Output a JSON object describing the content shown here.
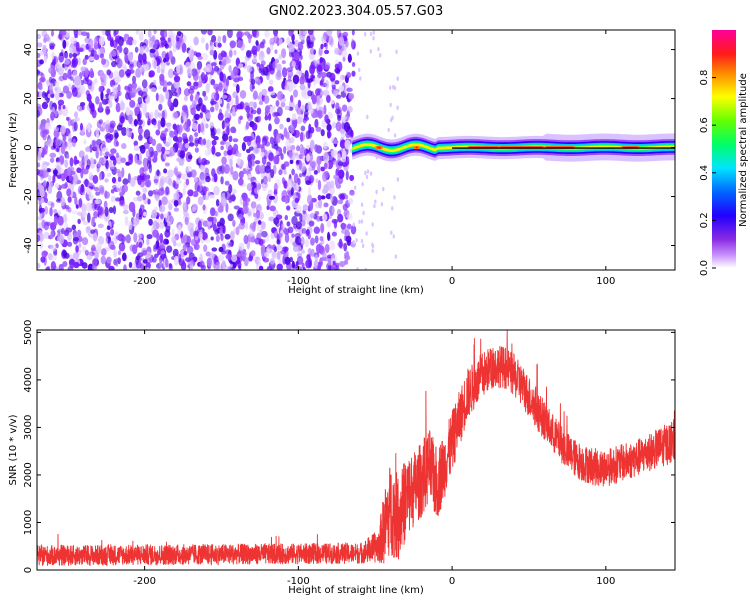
{
  "figure": {
    "title": "GN02.2023.304.05.57.G03"
  },
  "chart_data": [
    {
      "type": "heatmap",
      "name": "spectrogram",
      "xlabel": "Height of straight line (km)",
      "ylabel": "Frequency (Hz)",
      "xlim": [
        -270,
        145
      ],
      "ylim": [
        -50,
        48
      ],
      "xticks": [
        -200,
        -100,
        0,
        100
      ],
      "xtick_labels": [
        "-200",
        "-100",
        "0",
        "100"
      ],
      "yticks": [
        -40,
        -20,
        0,
        20,
        40
      ],
      "ytick_labels": [
        "-40",
        "-20",
        "0",
        "20",
        "40"
      ],
      "colorbar": {
        "label": "Normalized spectral amplitude",
        "range": [
          0,
          1
        ],
        "ticks": [
          0,
          0.2,
          0.4,
          0.6,
          0.8
        ],
        "tick_labels": [
          "0.0",
          "0.2",
          "0.4",
          "0.6",
          "0.8"
        ],
        "colormap": [
          "#ffffff",
          "#9933ff",
          "#3300ff",
          "#0055ff",
          "#00ffff",
          "#00ff44",
          "#66ff00",
          "#ffff00",
          "#ff6600",
          "#ff0033",
          "#ff0099"
        ]
      },
      "noise_region_x": [
        -270,
        -65
      ],
      "signal_region_x": [
        -65,
        145
      ],
      "signal_frequency_hz": 0,
      "noise_color": "#6a0dff",
      "signal_peak_color": "#ff2222"
    },
    {
      "type": "line",
      "name": "snr",
      "xlabel": "Height of straight line (km)",
      "ylabel": "SNR (10 * v/v)",
      "xlim": [
        -270,
        145
      ],
      "ylim": [
        0,
        5050
      ],
      "xticks": [
        -200,
        -100,
        0,
        100
      ],
      "xtick_labels": [
        "-200",
        "-100",
        "0",
        "100"
      ],
      "yticks": [
        0,
        1000,
        2000,
        3000,
        4000,
        5000
      ],
      "ytick_labels": [
        "0",
        "1000",
        "2000",
        "3000",
        "4000",
        "5000"
      ],
      "color": "#ee3333",
      "envelope": {
        "x": [
          -270,
          -200,
          -100,
          -60,
          -48,
          -44,
          -40,
          -35,
          -30,
          -25,
          -20,
          -15,
          -10,
          -5,
          0,
          5,
          10,
          15,
          20,
          25,
          30,
          35,
          40,
          45,
          50,
          55,
          60,
          65,
          70,
          75,
          80,
          85,
          90,
          95,
          100,
          110,
          120,
          130,
          140,
          145
        ],
        "mean": [
          300,
          320,
          340,
          350,
          500,
          900,
          1300,
          1100,
          1500,
          1700,
          1900,
          2200,
          1800,
          2200,
          2700,
          3200,
          3700,
          3900,
          4100,
          4250,
          4300,
          4250,
          4100,
          3900,
          3650,
          3400,
          3150,
          2900,
          2700,
          2500,
          2350,
          2250,
          2200,
          2150,
          2150,
          2250,
          2350,
          2500,
          2650,
          2750
        ],
        "spread": [
          220,
          220,
          220,
          220,
          350,
          800,
          1000,
          900,
          900,
          800,
          800,
          800,
          800,
          700,
          650,
          600,
          550,
          500,
          500,
          450,
          450,
          450,
          450,
          450,
          450,
          450,
          420,
          420,
          400,
          400,
          400,
          400,
          400,
          400,
          400,
          400,
          400,
          400,
          450,
          450
        ]
      }
    }
  ]
}
